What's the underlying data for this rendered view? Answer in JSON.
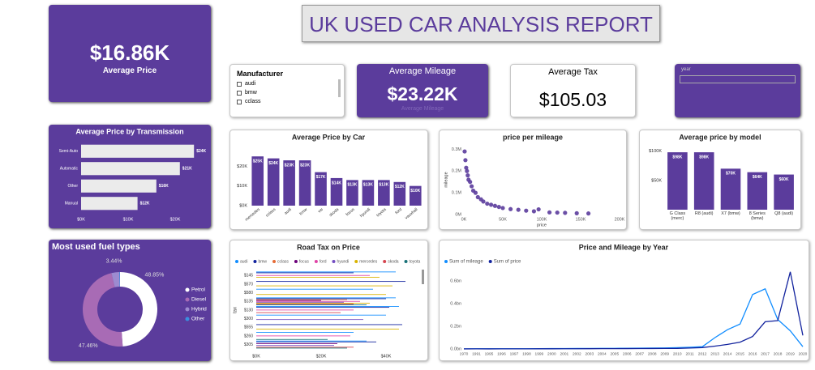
{
  "title": "UK USED CAR ANALYSIS REPORT",
  "kpis": [
    {
      "value": "$16.86K",
      "label": "Average Price"
    },
    {
      "title": "Average Mileage",
      "value": "$23.22K",
      "label": "Average Mileage"
    },
    {
      "title": "Average Tax",
      "value": "$105.03"
    }
  ],
  "slicers": [
    {
      "title": "Manufacturer",
      "items": [
        "audi",
        "bmw",
        "cclass"
      ]
    },
    {
      "title": "year"
    }
  ],
  "chart_data": [
    {
      "type": "bar",
      "horizontal": true,
      "title": "Average Price by Transmission",
      "categories": [
        "Semi-Auto",
        "Automatic",
        "Other",
        "Manual"
      ],
      "values": [
        24000,
        21000,
        16000,
        12000
      ],
      "value_labels": [
        "$24K",
        "$21K",
        "$16K",
        "$12K"
      ],
      "color": "#ebebeb",
      "xlim": [
        0,
        25000
      ],
      "xticks": [
        {
          "value": 0,
          "label": "$0K"
        },
        {
          "value": 10000,
          "label": "$10K"
        },
        {
          "value": 20000,
          "label": "$20K"
        }
      ]
    },
    {
      "type": "bar",
      "title": "Average Price by Car",
      "categories": [
        "mercedes",
        "cclass",
        "audi",
        "bmw",
        "vw",
        "skoda",
        "focus",
        "hyundi",
        "toyota",
        "ford",
        "vauxhall"
      ],
      "values": [
        25000,
        24000,
        23000,
        23000,
        17000,
        14000,
        13000,
        13000,
        13000,
        12000,
        10000
      ],
      "value_labels": [
        "$25K",
        "$24K",
        "$23K",
        "$23K",
        "$17K",
        "$14K",
        "$13K",
        "$13K",
        "$13K",
        "$12K",
        "$10K"
      ],
      "color": "#5b3c9c",
      "ylim": [
        0,
        30000
      ],
      "yticks": [
        {
          "value": 0,
          "label": "$0K"
        },
        {
          "value": 10000,
          "label": "$10K"
        },
        {
          "value": 20000,
          "label": "$20K"
        }
      ]
    },
    {
      "type": "scatter",
      "title": "price per mileage",
      "xlabel": "price",
      "ylabel": "mileage",
      "color": "#5b3c9c",
      "x": [
        1000,
        2000,
        3000,
        4000,
        5000,
        6000,
        8000,
        10000,
        12000,
        15000,
        18000,
        22000,
        25000,
        30000,
        35000,
        40000,
        45000,
        50000,
        60000,
        70000,
        80000,
        90000,
        96000,
        110000,
        120000,
        130000,
        145000,
        160000
      ],
      "y": [
        290000,
        250000,
        215000,
        200000,
        180000,
        160000,
        150000,
        130000,
        110000,
        100000,
        80000,
        70000,
        60000,
        50000,
        45000,
        40000,
        35000,
        30000,
        25000,
        22000,
        18000,
        15000,
        24000,
        10000,
        9000,
        8000,
        6000,
        5000
      ],
      "xlim": [
        0,
        200000
      ],
      "ylim": [
        0,
        320000
      ],
      "xticks": [
        {
          "value": 0,
          "label": "0K"
        },
        {
          "value": 50000,
          "label": "50K"
        },
        {
          "value": 100000,
          "label": "100K"
        },
        {
          "value": 150000,
          "label": "150K"
        },
        {
          "value": 200000,
          "label": "200K"
        }
      ],
      "yticks": [
        {
          "value": 0,
          "label": "0M"
        },
        {
          "value": 100000,
          "label": "0.1M"
        },
        {
          "value": 200000,
          "label": "0.2M"
        },
        {
          "value": 300000,
          "label": "0.3M"
        }
      ]
    },
    {
      "type": "bar",
      "title": "Average price by model",
      "categories": [
        "G Class (merc)",
        "R8 (audi)",
        "X7 (bmw)",
        "8 Series (bmw)",
        "Q8 (audi)"
      ],
      "values": [
        98000,
        98000,
        70000,
        64000,
        60000
      ],
      "value_labels": [
        "$98K",
        "$98K",
        "$70K",
        "$64K",
        "$60K"
      ],
      "color": "#5b3c9c",
      "ylim": [
        0,
        105000
      ],
      "yticks": [
        {
          "value": 50000,
          "label": "$50K"
        },
        {
          "value": 100000,
          "label": "$100K"
        }
      ]
    },
    {
      "type": "pie",
      "donut": true,
      "title": "Most used fuel types",
      "categories": [
        "Petrol",
        "Diesel",
        "Hybrid",
        "Other"
      ],
      "values": [
        48.85,
        47.46,
        3.44,
        0.25
      ],
      "value_labels": [
        "48.85%",
        "47.46%",
        "3.44%",
        null
      ],
      "colors": [
        "#ffffff",
        "#a86bb5",
        "#9d8bd0",
        "#3a8fe0"
      ]
    },
    {
      "type": "bar",
      "horizontal": true,
      "title": "Road Tax on Price",
      "ylabel": "tax",
      "categories": [
        "$145",
        "$570",
        "$580",
        "$135",
        "$130",
        "$300",
        "$555",
        "$260",
        "$305"
      ],
      "series": [
        {
          "name": "audi",
          "color": "#118dff",
          "values": [
            43000,
            null,
            36000,
            43000,
            44000,
            40000,
            null,
            30000,
            34000
          ]
        },
        {
          "name": "bmw",
          "color": "#12239e",
          "values": [
            30000,
            46000,
            null,
            40000,
            41000,
            null,
            45000,
            null,
            37000
          ]
        },
        {
          "name": "cclass",
          "color": "#e66c37",
          "values": [
            null,
            null,
            null,
            28000,
            null,
            null,
            null,
            null,
            null
          ]
        },
        {
          "name": "focus",
          "color": "#6b007b",
          "values": [
            null,
            null,
            null,
            20000,
            null,
            null,
            null,
            null,
            25000
          ]
        },
        {
          "name": "ford",
          "color": "#e044a7",
          "values": [
            35000,
            null,
            null,
            32000,
            30000,
            null,
            null,
            29000,
            null
          ]
        },
        {
          "name": "hyundi",
          "color": "#744ec2",
          "values": [
            null,
            null,
            null,
            27000,
            null,
            33000,
            null,
            null,
            24000
          ]
        },
        {
          "name": "mercedes",
          "color": "#d9b300",
          "values": [
            38000,
            42000,
            40000,
            35000,
            null,
            null,
            44000,
            null,
            null
          ]
        },
        {
          "name": "skoda",
          "color": "#d64550",
          "values": [
            null,
            null,
            null,
            30000,
            26000,
            null,
            null,
            null,
            30000
          ]
        },
        {
          "name": "toyota",
          "color": "#197278",
          "values": [
            null,
            null,
            null,
            34000,
            null,
            null,
            null,
            22000,
            28000
          ]
        }
      ],
      "xlim": [
        0,
        50000
      ],
      "xticks": [
        {
          "value": 0,
          "label": "$0K"
        },
        {
          "value": 20000,
          "label": "$20K"
        },
        {
          "value": 40000,
          "label": "$40K"
        }
      ]
    },
    {
      "type": "line",
      "title": "Price and Mileage by Year",
      "categories": [
        "1970",
        "1991",
        "1995",
        "1996",
        "1997",
        "1998",
        "1999",
        "2000",
        "2001",
        "2002",
        "2003",
        "2004",
        "2005",
        "2006",
        "2007",
        "2008",
        "2009",
        "2010",
        "2011",
        "2012",
        "2013",
        "2014",
        "2015",
        "2016",
        "2017",
        "2018",
        "2019",
        "2020"
      ],
      "series": [
        {
          "name": "Sum of mileage",
          "color": "#118dff",
          "values": [
            1000000,
            1500000,
            1200000,
            1800000,
            1600000,
            2000000,
            2500000,
            3000000,
            3500000,
            4000000,
            4500000,
            5000000,
            5500000,
            6000000,
            7000000,
            8000000,
            9000000,
            11000000,
            15000000,
            20000000,
            100000000,
            170000000,
            220000000,
            480000000,
            530000000,
            260000000,
            160000000,
            20000000
          ]
        },
        {
          "name": "Sum of price",
          "color": "#12239e",
          "values": [
            500000,
            800000,
            600000,
            900000,
            800000,
            1000000,
            1200000,
            1500000,
            1800000,
            2000000,
            2200000,
            2500000,
            2800000,
            3000000,
            3500000,
            4000000,
            4500000,
            5000000,
            8000000,
            12000000,
            25000000,
            40000000,
            60000000,
            110000000,
            240000000,
            250000000,
            680000000,
            120000000
          ]
        }
      ],
      "ylim": [
        0,
        700000000
      ],
      "yticks": [
        {
          "value": 0,
          "label": "0.0bn"
        },
        {
          "value": 200000000,
          "label": "0.2bn"
        },
        {
          "value": 400000000,
          "label": "0.4bn"
        },
        {
          "value": 600000000,
          "label": "0.6bn"
        }
      ]
    }
  ]
}
